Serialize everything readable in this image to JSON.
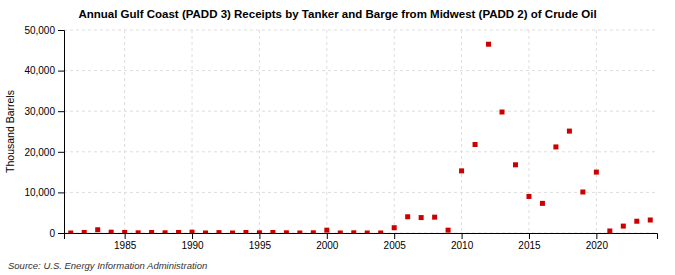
{
  "chart_data": {
    "type": "scatter",
    "title": "Annual Gulf Coast (PADD 3) Receipts by Tanker and Barge from Midwest (PADD 2) of Crude Oil",
    "ylabel": "Thousand Barrels",
    "source": "Source: U.S. Energy Information Administration",
    "color": "#cc0000",
    "marker": "square",
    "grid": true,
    "x": [
      1981,
      1982,
      1983,
      1984,
      1985,
      1986,
      1987,
      1988,
      1989,
      1990,
      1991,
      1992,
      1993,
      1994,
      1995,
      1996,
      1997,
      1998,
      1999,
      2000,
      2001,
      2002,
      2003,
      2004,
      2005,
      2006,
      2007,
      2008,
      2009,
      2010,
      2011,
      2012,
      2013,
      2014,
      2015,
      2016,
      2017,
      2018,
      2019,
      2020,
      2021,
      2022,
      2023,
      2024
    ],
    "values": [
      0,
      130,
      800,
      200,
      130,
      50,
      130,
      50,
      130,
      200,
      0,
      100,
      0,
      130,
      50,
      130,
      50,
      0,
      50,
      700,
      0,
      50,
      0,
      0,
      1300,
      4000,
      3800,
      3900,
      700,
      15300,
      21800,
      46500,
      29800,
      16800,
      9000,
      7300,
      21200,
      25100,
      10100,
      15000,
      500,
      1700,
      2900,
      3200
    ],
    "xlim": [
      1980.5,
      2024.5
    ],
    "xticks": [
      1985,
      1990,
      1995,
      2000,
      2005,
      2010,
      2015,
      2020
    ],
    "ylim": [
      0,
      50000
    ],
    "yticks": [
      0,
      {
        "value": 10000,
        "label": "10,000"
      },
      {
        "value": 20000,
        "label": "20,000"
      },
      {
        "value": 30000,
        "label": "30,000"
      },
      {
        "value": 40000,
        "label": "40,000"
      },
      {
        "value": 50000,
        "label": "50,000"
      }
    ]
  }
}
